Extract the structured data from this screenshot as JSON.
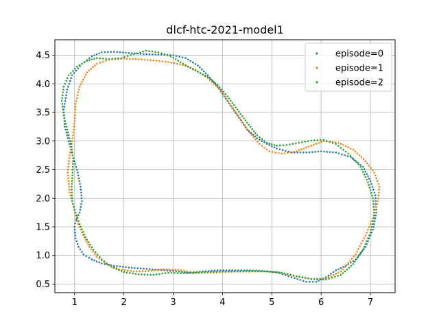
{
  "chart_data": {
    "type": "scatter",
    "title": "dlcf-htc-2021-model1",
    "xlabel": "",
    "ylabel": "",
    "xlim": [
      0.6,
      7.5
    ],
    "ylim": [
      0.35,
      4.77
    ],
    "xticks": [
      1,
      2,
      3,
      4,
      5,
      6,
      7
    ],
    "yticks": [
      0.5,
      1.0,
      1.5,
      2.0,
      2.5,
      3.0,
      3.5,
      4.0,
      4.5
    ],
    "ytick_labels": [
      "0.5",
      "1.0",
      "1.5",
      "2.0",
      "2.5",
      "3.0",
      "3.5",
      "4.0",
      "4.5"
    ],
    "grid": true,
    "legend_position": "top-right",
    "series": [
      {
        "name": "episode=0",
        "color": "#1f77b4",
        "points": [
          [
            1.0,
            1.5
          ],
          [
            1.02,
            1.3
          ],
          [
            1.08,
            1.15
          ],
          [
            1.18,
            1.02
          ],
          [
            1.35,
            0.93
          ],
          [
            1.55,
            0.86
          ],
          [
            1.8,
            0.82
          ],
          [
            2.1,
            0.79
          ],
          [
            2.4,
            0.77
          ],
          [
            2.7,
            0.75
          ],
          [
            3.0,
            0.73
          ],
          [
            3.3,
            0.7
          ],
          [
            3.6,
            0.72
          ],
          [
            3.9,
            0.74
          ],
          [
            4.2,
            0.74
          ],
          [
            4.5,
            0.74
          ],
          [
            4.8,
            0.73
          ],
          [
            5.1,
            0.71
          ],
          [
            5.4,
            0.62
          ],
          [
            5.7,
            0.54
          ],
          [
            5.9,
            0.54
          ],
          [
            6.1,
            0.62
          ],
          [
            6.3,
            0.74
          ],
          [
            6.5,
            0.82
          ],
          [
            6.7,
            0.93
          ],
          [
            6.9,
            1.15
          ],
          [
            7.05,
            1.45
          ],
          [
            7.12,
            1.75
          ],
          [
            7.1,
            2.05
          ],
          [
            7.0,
            2.3
          ],
          [
            6.85,
            2.55
          ],
          [
            6.6,
            2.72
          ],
          [
            6.3,
            2.8
          ],
          [
            6.0,
            2.82
          ],
          [
            5.7,
            2.8
          ],
          [
            5.4,
            2.8
          ],
          [
            5.1,
            2.87
          ],
          [
            4.9,
            2.95
          ],
          [
            4.7,
            3.05
          ],
          [
            4.5,
            3.2
          ],
          [
            4.3,
            3.45
          ],
          [
            4.1,
            3.7
          ],
          [
            3.9,
            3.95
          ],
          [
            3.7,
            4.15
          ],
          [
            3.5,
            4.32
          ],
          [
            3.25,
            4.45
          ],
          [
            3.0,
            4.5
          ],
          [
            2.7,
            4.51
          ],
          [
            2.4,
            4.52
          ],
          [
            2.1,
            4.54
          ],
          [
            1.8,
            4.56
          ],
          [
            1.55,
            4.55
          ],
          [
            1.35,
            4.48
          ],
          [
            1.15,
            4.35
          ],
          [
            0.95,
            4.15
          ],
          [
            0.85,
            3.9
          ],
          [
            0.78,
            3.55
          ],
          [
            0.8,
            3.25
          ],
          [
            0.88,
            3.0
          ],
          [
            0.96,
            2.75
          ],
          [
            1.05,
            2.5
          ],
          [
            1.12,
            2.2
          ],
          [
            1.15,
            1.95
          ],
          [
            1.1,
            1.75
          ],
          [
            1.03,
            1.62
          ]
        ]
      },
      {
        "name": "episode=1",
        "color": "#ff7f0e",
        "points": [
          [
            0.9,
            2.1
          ],
          [
            0.98,
            1.85
          ],
          [
            1.05,
            1.6
          ],
          [
            1.15,
            1.4
          ],
          [
            1.3,
            1.15
          ],
          [
            1.45,
            0.98
          ],
          [
            1.65,
            0.85
          ],
          [
            1.9,
            0.76
          ],
          [
            2.2,
            0.72
          ],
          [
            2.5,
            0.73
          ],
          [
            2.8,
            0.76
          ],
          [
            3.1,
            0.75
          ],
          [
            3.4,
            0.7
          ],
          [
            3.7,
            0.7
          ],
          [
            4.0,
            0.71
          ],
          [
            4.3,
            0.72
          ],
          [
            4.6,
            0.72
          ],
          [
            4.9,
            0.72
          ],
          [
            5.2,
            0.69
          ],
          [
            5.5,
            0.63
          ],
          [
            5.8,
            0.59
          ],
          [
            6.1,
            0.6
          ],
          [
            6.4,
            0.72
          ],
          [
            6.7,
            1.02
          ],
          [
            6.9,
            1.35
          ],
          [
            7.05,
            1.65
          ],
          [
            7.15,
            1.95
          ],
          [
            7.18,
            2.2
          ],
          [
            7.08,
            2.45
          ],
          [
            6.9,
            2.65
          ],
          [
            6.65,
            2.85
          ],
          [
            6.35,
            2.97
          ],
          [
            6.05,
            3.0
          ],
          [
            5.8,
            2.92
          ],
          [
            5.5,
            2.82
          ],
          [
            5.2,
            2.78
          ],
          [
            4.95,
            2.82
          ],
          [
            4.75,
            2.95
          ],
          [
            4.55,
            3.15
          ],
          [
            4.35,
            3.4
          ],
          [
            4.15,
            3.65
          ],
          [
            3.95,
            3.9
          ],
          [
            3.7,
            4.1
          ],
          [
            3.45,
            4.25
          ],
          [
            3.2,
            4.33
          ],
          [
            2.9,
            4.38
          ],
          [
            2.6,
            4.41
          ],
          [
            2.3,
            4.43
          ],
          [
            2.0,
            4.44
          ],
          [
            1.7,
            4.42
          ],
          [
            1.45,
            4.35
          ],
          [
            1.25,
            4.2
          ],
          [
            1.1,
            3.95
          ],
          [
            1.02,
            3.65
          ],
          [
            1.0,
            3.35
          ],
          [
            0.96,
            3.05
          ],
          [
            0.9,
            2.75
          ],
          [
            0.86,
            2.45
          ]
        ]
      },
      {
        "name": "episode=2",
        "color": "#2ca02c",
        "points": [
          [
            0.95,
            1.95
          ],
          [
            1.02,
            1.75
          ],
          [
            1.1,
            1.55
          ],
          [
            1.22,
            1.32
          ],
          [
            1.38,
            1.1
          ],
          [
            1.55,
            0.93
          ],
          [
            1.75,
            0.8
          ],
          [
            2.0,
            0.71
          ],
          [
            2.3,
            0.67
          ],
          [
            2.6,
            0.66
          ],
          [
            2.9,
            0.7
          ],
          [
            3.15,
            0.69
          ],
          [
            3.4,
            0.69
          ],
          [
            3.7,
            0.71
          ],
          [
            4.0,
            0.72
          ],
          [
            4.3,
            0.72
          ],
          [
            4.6,
            0.73
          ],
          [
            4.9,
            0.72
          ],
          [
            5.2,
            0.7
          ],
          [
            5.5,
            0.64
          ],
          [
            5.8,
            0.59
          ],
          [
            6.1,
            0.58
          ],
          [
            6.4,
            0.66
          ],
          [
            6.65,
            0.85
          ],
          [
            6.85,
            1.1
          ],
          [
            7.0,
            1.4
          ],
          [
            7.08,
            1.7
          ],
          [
            7.05,
            2.0
          ],
          [
            6.95,
            2.28
          ],
          [
            6.8,
            2.55
          ],
          [
            6.55,
            2.78
          ],
          [
            6.3,
            2.95
          ],
          [
            6.05,
            3.02
          ],
          [
            5.8,
            3.01
          ],
          [
            5.55,
            2.97
          ],
          [
            5.3,
            2.93
          ],
          [
            5.1,
            2.92
          ],
          [
            4.9,
            2.97
          ],
          [
            4.7,
            3.1
          ],
          [
            4.5,
            3.32
          ],
          [
            4.3,
            3.55
          ],
          [
            4.1,
            3.78
          ],
          [
            3.9,
            3.98
          ],
          [
            3.7,
            4.12
          ],
          [
            3.45,
            4.23
          ],
          [
            3.2,
            4.35
          ],
          [
            2.95,
            4.48
          ],
          [
            2.7,
            4.55
          ],
          [
            2.45,
            4.58
          ],
          [
            2.2,
            4.52
          ],
          [
            1.95,
            4.45
          ],
          [
            1.7,
            4.43
          ],
          [
            1.45,
            4.45
          ],
          [
            1.25,
            4.4
          ],
          [
            1.05,
            4.3
          ],
          [
            0.88,
            4.15
          ],
          [
            0.78,
            3.95
          ],
          [
            0.74,
            3.7
          ],
          [
            0.78,
            3.45
          ],
          [
            0.85,
            3.2
          ],
          [
            0.93,
            2.95
          ],
          [
            0.97,
            2.7
          ],
          [
            0.96,
            2.45
          ],
          [
            0.94,
            2.2
          ]
        ]
      }
    ]
  }
}
